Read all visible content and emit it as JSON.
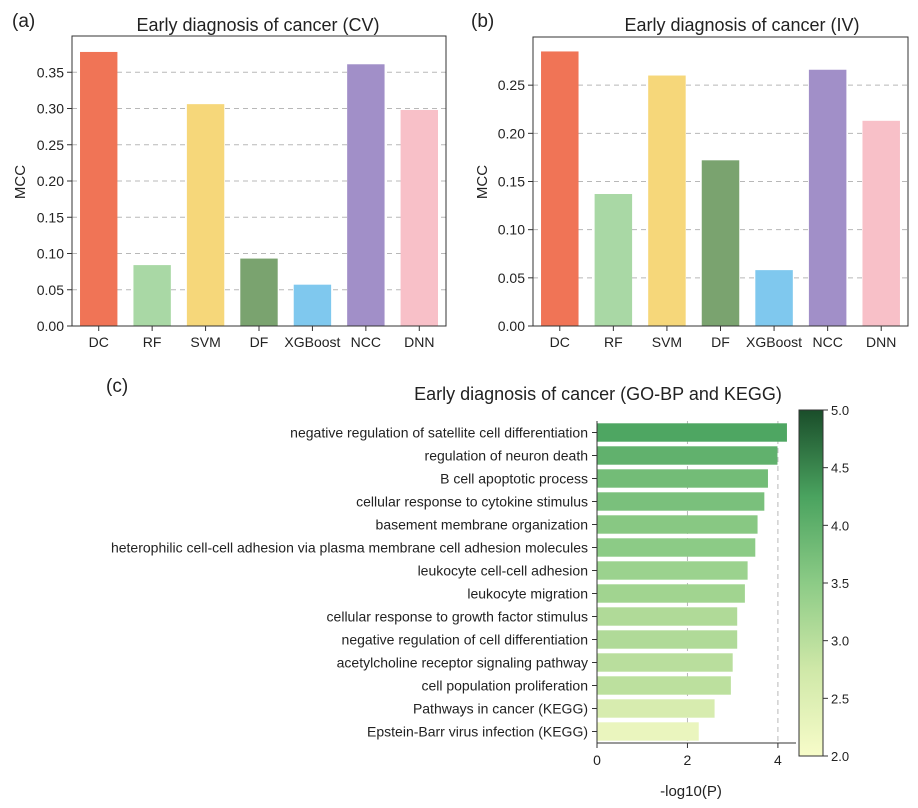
{
  "panels": {
    "a": {
      "tag": "(a)"
    },
    "b": {
      "tag": "(b)"
    },
    "c": {
      "tag": "(c)"
    }
  },
  "chart_data": [
    {
      "id": "a",
      "type": "bar",
      "title": "Early diagnosis of cancer (CV)",
      "xlabel": "",
      "ylabel": "MCC",
      "categories": [
        "DC",
        "RF",
        "SVM",
        "DF",
        "XGBoost",
        "NCC",
        "DNN"
      ],
      "values": [
        0.378,
        0.084,
        0.306,
        0.093,
        0.057,
        0.361,
        0.298
      ],
      "colors": [
        "#f07456",
        "#a9d8a5",
        "#f6d77a",
        "#7aa36f",
        "#7fc8ee",
        "#a18fc8",
        "#f8c0c8"
      ],
      "ylim": [
        0,
        0.4
      ],
      "yticks": [
        "0.00",
        "0.05",
        "0.10",
        "0.15",
        "0.20",
        "0.25",
        "0.30",
        "0.35"
      ],
      "grid": "y-dashed"
    },
    {
      "id": "b",
      "type": "bar",
      "title": "Early diagnosis of cancer (IV)",
      "xlabel": "",
      "ylabel": "MCC",
      "categories": [
        "DC",
        "RF",
        "SVM",
        "DF",
        "XGBoost",
        "NCC",
        "DNN"
      ],
      "values": [
        0.285,
        0.137,
        0.26,
        0.172,
        0.058,
        0.266,
        0.213
      ],
      "colors": [
        "#f07456",
        "#a9d8a5",
        "#f6d77a",
        "#7aa36f",
        "#7fc8ee",
        "#a18fc8",
        "#f8c0c8"
      ],
      "ylim": [
        0,
        0.3
      ],
      "yticks": [
        "0.00",
        "0.05",
        "0.10",
        "0.15",
        "0.20",
        "0.25"
      ],
      "grid": "y-dashed"
    },
    {
      "id": "c",
      "type": "bar",
      "orientation": "horizontal",
      "title": "Early diagnosis of cancer (GO-BP and KEGG)",
      "xlabel": "-log10(P)",
      "ylabel": "",
      "categories": [
        "negative regulation of satellite cell differentiation",
        "regulation of neuron death",
        "B cell apoptotic process",
        "cellular response to cytokine stimulus",
        "basement membrane organization",
        "heterophilic cell-cell adhesion via plasma membrane cell adhesion molecules",
        "leukocyte cell-cell adhesion",
        "leukocyte migration",
        "cellular response to growth factor stimulus",
        "negative regulation of cell differentiation",
        "acetylcholine receptor signaling pathway",
        "cell population proliferation",
        "Pathways in cancer (KEGG)",
        "Epstein-Barr virus infection (KEGG)"
      ],
      "values": [
        4.2,
        3.99,
        3.78,
        3.7,
        3.55,
        3.5,
        3.33,
        3.27,
        3.1,
        3.1,
        3.0,
        2.96,
        2.6,
        2.25
      ],
      "xlim": [
        0,
        4.4
      ],
      "xticks": [
        "0",
        "2",
        "4"
      ],
      "grid": "x-dashed",
      "colorbar": {
        "cmap": "Greens",
        "range": [
          2.0,
          5.0
        ],
        "ticks": [
          "2.0",
          "2.5",
          "3.0",
          "3.5",
          "4.0",
          "4.5",
          "5.0"
        ]
      }
    }
  ]
}
